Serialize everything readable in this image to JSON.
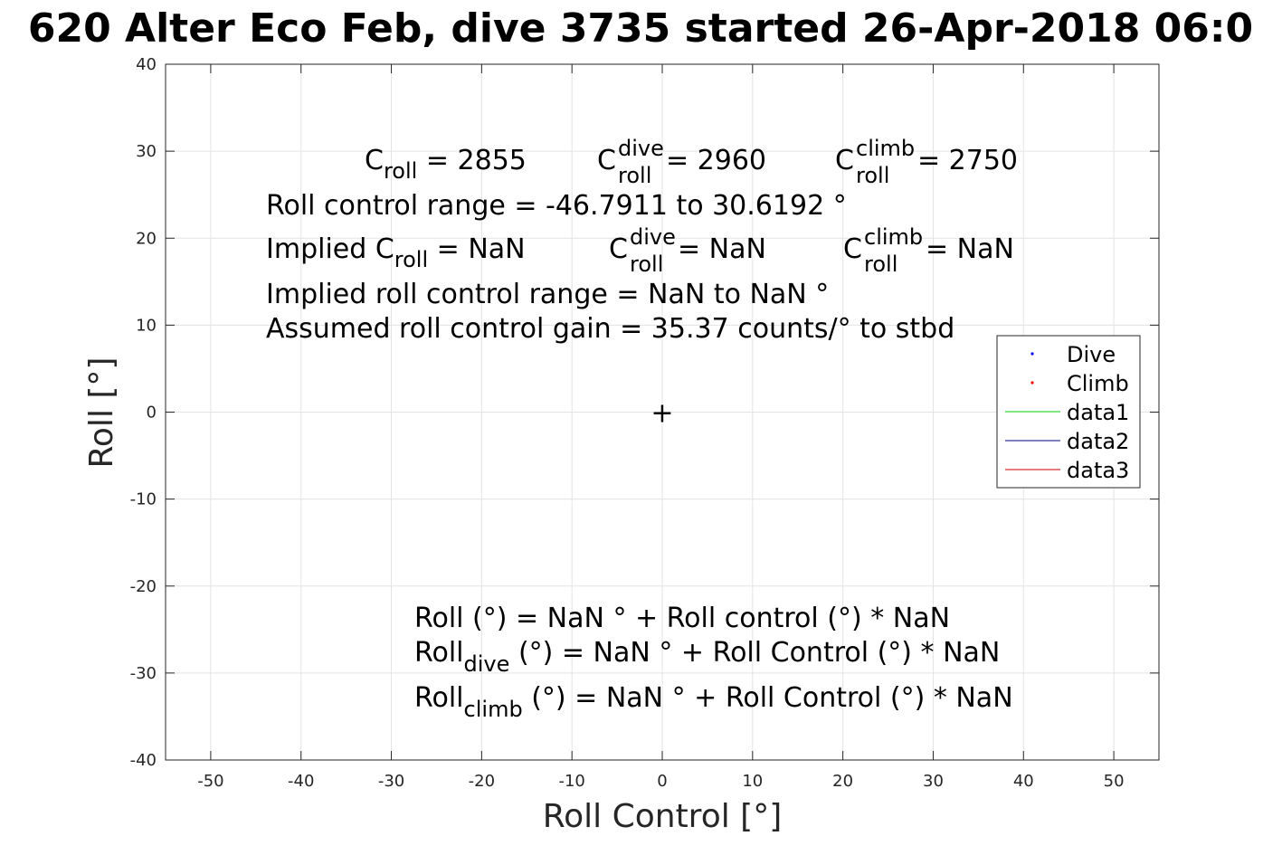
{
  "chart_data": {
    "type": "scatter",
    "title": "620 Alter Eco Feb, dive 3735 started 26-Apr-2018 06:0",
    "xlabel": "Roll Control [°]",
    "ylabel": "Roll [°]",
    "xlim": [
      -55,
      55
    ],
    "ylim": [
      -40,
      40
    ],
    "xticks": [
      -50,
      -40,
      -30,
      -20,
      -10,
      0,
      10,
      20,
      30,
      40,
      50
    ],
    "yticks": [
      -40,
      -30,
      -20,
      -10,
      0,
      10,
      20,
      30,
      40
    ],
    "grid": true,
    "legend_position": "east",
    "series": [
      {
        "name": "Dive",
        "marker": "dot",
        "color": "#0000ff",
        "points": []
      },
      {
        "name": "Climb",
        "marker": "dot",
        "color": "#ff0000",
        "points": []
      },
      {
        "name": "data1",
        "marker": "line",
        "color": "#00cc00",
        "points": []
      },
      {
        "name": "data2",
        "marker": "line",
        "color": "#000080",
        "points": []
      },
      {
        "name": "data3",
        "marker": "line",
        "color": "#cc0000",
        "points": []
      }
    ],
    "center_marker": {
      "symbol": "+",
      "x": 0,
      "y": 0
    },
    "annotations": {
      "c_roll": {
        "base": "C",
        "sub": "roll",
        "rest": " = 2855"
      },
      "c_roll_dive": {
        "base": "C",
        "sup": "dive",
        "sub": "roll",
        "rest": " = 2960"
      },
      "c_roll_climb": {
        "base": "C",
        "sup": "climb",
        "sub": "roll",
        "rest": " = 2750"
      },
      "control_range": "Roll control range = -46.7911 to 30.6192 °",
      "implied_prefix": "Implied C",
      "implied_sub": "roll",
      "implied_rest": " =  NaN",
      "implied_dive": {
        "base": "C",
        "sup": "dive",
        "sub": "roll",
        "rest": " =  NaN"
      },
      "implied_climb": {
        "base": "C",
        "sup": "climb",
        "sub": "roll",
        "rest": " =  NaN"
      },
      "implied_range": "Implied roll control range = NaN to NaN °",
      "gain": "Assumed roll control gain = 35.37 counts/° to stbd",
      "fit_all": "Roll (°) = NaN ° + Roll control (°) * NaN",
      "fit_dive": {
        "base": "Roll",
        "sub": "dive",
        "rest": " (°) = NaN ° + Roll Control (°) * NaN"
      },
      "fit_climb": {
        "base": "Roll",
        "sub": "climb",
        "rest": " (°) = NaN ° + Roll Control (°) * NaN"
      }
    }
  }
}
